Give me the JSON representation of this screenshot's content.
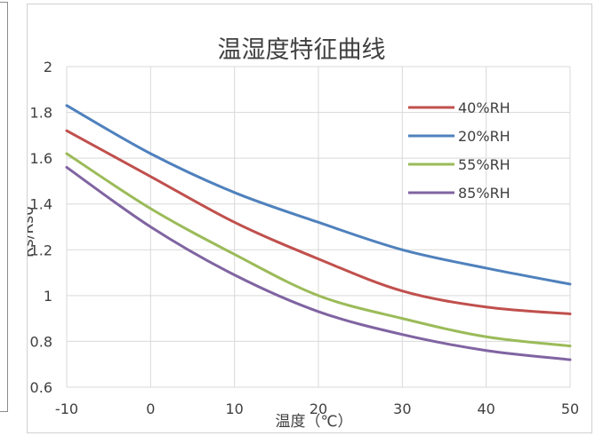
{
  "chart_data": {
    "type": "line",
    "title": "温湿度特征曲线",
    "xlabel": "温度（℃）",
    "ylabel": "Rs/Rs0",
    "xlim": [
      -10,
      50
    ],
    "ylim": [
      0.6,
      2
    ],
    "x_ticks": [
      "-10",
      "0",
      "10",
      "20",
      "30",
      "40",
      "50"
    ],
    "y_ticks": [
      "0.6",
      "0.8",
      "1",
      "1.2",
      "1.4",
      "1.6",
      "1.8",
      "2"
    ],
    "grid": true,
    "legend_position": "top-right",
    "series": [
      {
        "name": "40%RH",
        "color": "#c0504d",
        "points": [
          [
            -10,
            1.72
          ],
          [
            0,
            1.52
          ],
          [
            10,
            1.32
          ],
          [
            20,
            1.16
          ],
          [
            30,
            1.02
          ],
          [
            40,
            0.95
          ],
          [
            50,
            0.92
          ]
        ]
      },
      {
        "name": "20%RH",
        "color": "#4f81bd",
        "points": [
          [
            -10,
            1.83
          ],
          [
            0,
            1.62
          ],
          [
            10,
            1.45
          ],
          [
            20,
            1.32
          ],
          [
            30,
            1.2
          ],
          [
            40,
            1.12
          ],
          [
            50,
            1.05
          ]
        ]
      },
      {
        "name": "55%RH",
        "color": "#9bbb59",
        "points": [
          [
            -10,
            1.62
          ],
          [
            0,
            1.38
          ],
          [
            10,
            1.18
          ],
          [
            20,
            1.0
          ],
          [
            30,
            0.9
          ],
          [
            40,
            0.82
          ],
          [
            50,
            0.78
          ]
        ]
      },
      {
        "name": "85%RH",
        "color": "#8064a2",
        "points": [
          [
            -10,
            1.56
          ],
          [
            0,
            1.3
          ],
          [
            10,
            1.09
          ],
          [
            20,
            0.93
          ],
          [
            30,
            0.83
          ],
          [
            40,
            0.76
          ],
          [
            50,
            0.72
          ]
        ]
      }
    ]
  }
}
